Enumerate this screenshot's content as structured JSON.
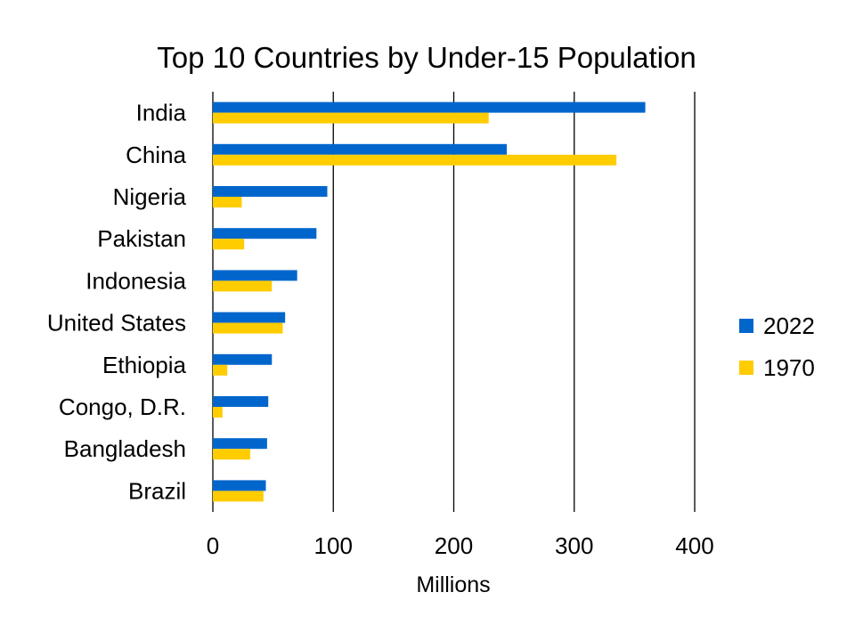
{
  "chart_data": {
    "type": "bar",
    "orientation": "horizontal",
    "title": "Top 10 Countries by Under-15 Population",
    "xlabel": "Millions",
    "ylabel": "",
    "xlim": [
      0,
      400
    ],
    "xticks": [
      0,
      100,
      200,
      300,
      400
    ],
    "xtick_labels": [
      "0",
      "100",
      "200",
      "300",
      "400"
    ],
    "grid": "vertical",
    "legend_position": "right",
    "categories": [
      "India",
      "China",
      "Nigeria",
      "Pakistan",
      "Indonesia",
      "United States",
      "Ethiopia",
      "Congo, D.R.",
      "Bangladesh",
      "Brazil"
    ],
    "series": [
      {
        "name": "2022",
        "color": "#0066CC",
        "values": [
          359,
          244,
          95,
          86,
          70,
          60,
          49,
          46,
          45,
          44
        ]
      },
      {
        "name": "1970",
        "color": "#FFCC00",
        "values": [
          229,
          335,
          24,
          26,
          49,
          58,
          12,
          8,
          31,
          42
        ]
      }
    ]
  }
}
